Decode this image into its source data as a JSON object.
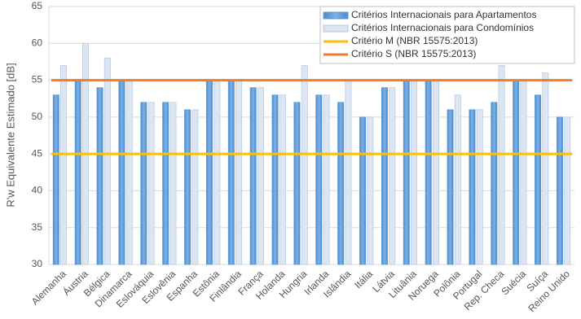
{
  "chart_data": {
    "type": "bar",
    "y_label": "R'w Equivalente Estimado [dB]",
    "categories": [
      "Alemanha",
      "Áustria",
      "Bélgica",
      "Dinamarca",
      "Eslováquia",
      "Eslovênia",
      "Espanha",
      "Estônia",
      "Finlândia",
      "França",
      "Holanda",
      "Hungria",
      "Irlanda",
      "Islândia",
      "Itália",
      "Látvia",
      "Lituânia",
      "Noruega",
      "Polônia",
      "Portugal",
      "Rep. Checa",
      "Suécia",
      "Suíça",
      "Reino Unido"
    ],
    "series": [
      {
        "name": "Critérios Internacionais para Apartamentos",
        "color": "#5b9bd5",
        "values": [
          53,
          55,
          54,
          55,
          52,
          52,
          51,
          55,
          55,
          54,
          53,
          52,
          53,
          52,
          50,
          54,
          55,
          55,
          51,
          51,
          52,
          55,
          53,
          50
        ]
      },
      {
        "name": "Critérios Internacionais para Condomínios",
        "color": "#dce6f2",
        "values": [
          57,
          60,
          58,
          55,
          52,
          52,
          51,
          55,
          55,
          54,
          53,
          57,
          53,
          55,
          50,
          54,
          55,
          55,
          53,
          51,
          57,
          55,
          56,
          50
        ]
      }
    ],
    "reference_lines": [
      {
        "name": "Critério M (NBR 15575:2013)",
        "color": "#ffc000",
        "value": 45
      },
      {
        "name": "Critério S (NBR 15575:2013)",
        "color": "#ed7d31",
        "value": 55
      }
    ],
    "ylim": [
      30,
      65
    ],
    "yticks": [
      30,
      35,
      40,
      45,
      50,
      55,
      60,
      65
    ],
    "grid": true,
    "legend": "top-right"
  }
}
